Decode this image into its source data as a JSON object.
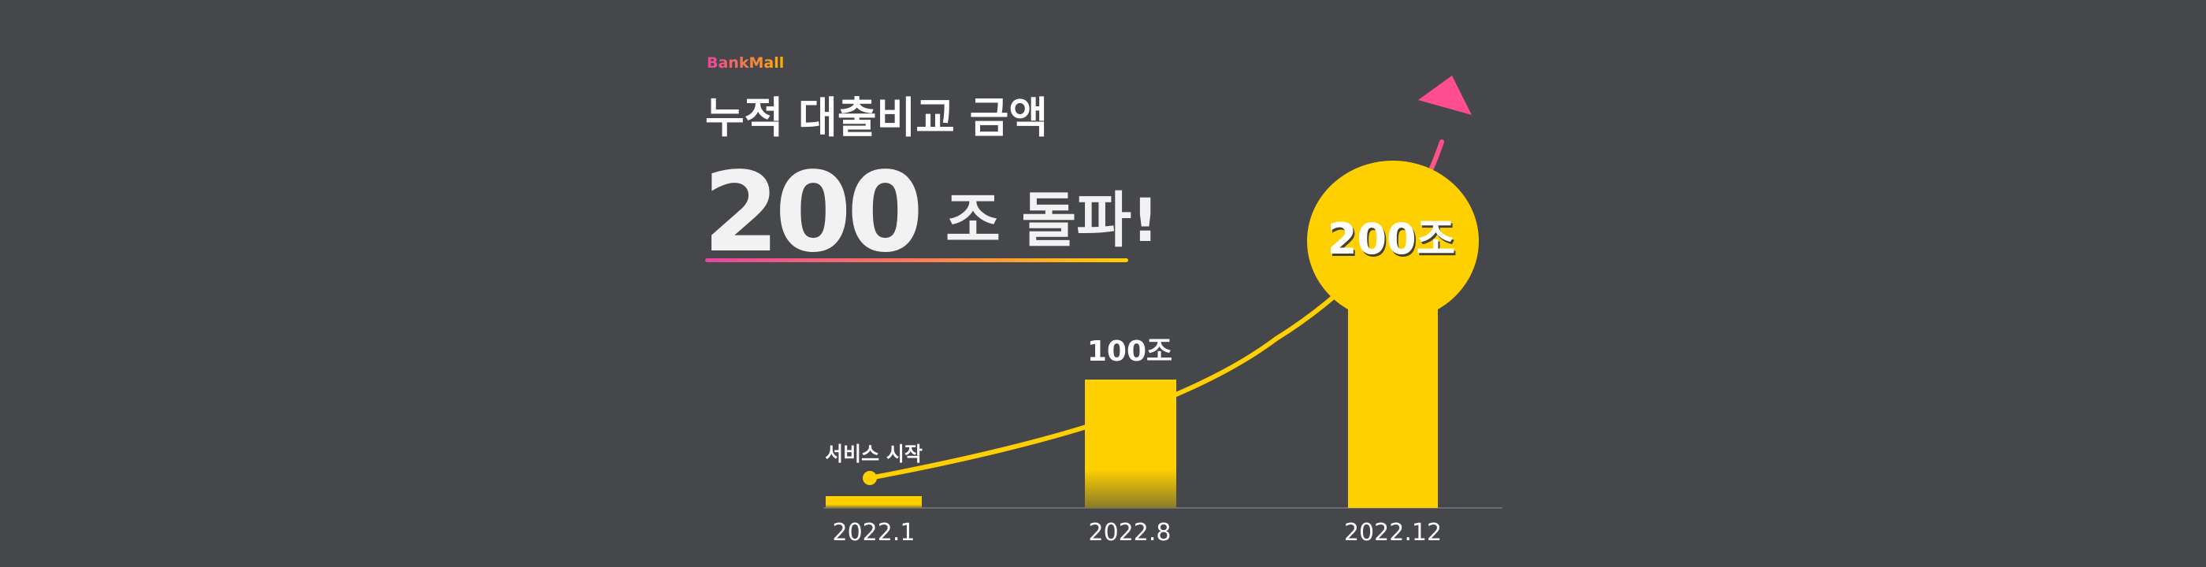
{
  "brand": "BankMall",
  "headline": "누적 대출비교 금액",
  "highlight": {
    "number": "200",
    "text": "조 돌파!"
  },
  "milestones": [
    {
      "label": "서비스 시작",
      "date": "2022.1"
    },
    {
      "label": "100조",
      "date": "2022.8"
    },
    {
      "label": "200조",
      "date": "2022.12"
    }
  ]
}
